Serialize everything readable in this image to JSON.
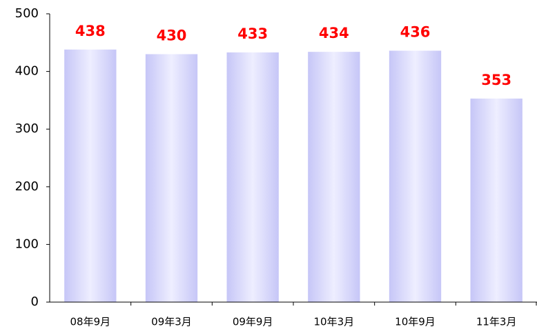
{
  "chart_data": {
    "type": "bar",
    "categories": [
      "08年9月",
      "09年3月",
      "09年9月",
      "10年3月",
      "10年9月",
      "11年3月"
    ],
    "values": [
      438,
      430,
      433,
      434,
      436,
      353
    ],
    "color": "#c6c6f7",
    "label_color": "#ff0000",
    "ylim": [
      0,
      500
    ],
    "yticks": [
      0,
      100,
      200,
      300,
      400,
      500
    ],
    "grid": false
  }
}
